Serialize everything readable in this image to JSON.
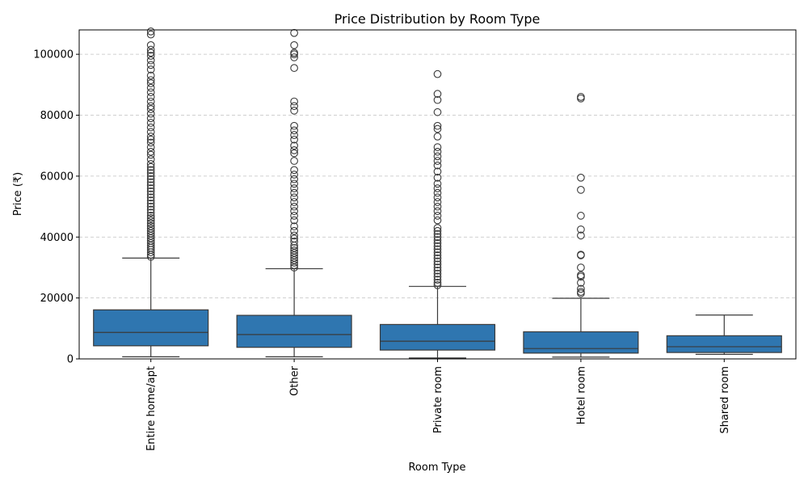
{
  "chart_data": {
    "type": "box",
    "title": "Price Distribution by Room Type",
    "xlabel": "Room Type",
    "ylabel": "Price (₹)",
    "ylim": [
      0,
      108000
    ],
    "yticks": [
      0,
      20000,
      40000,
      60000,
      80000,
      100000
    ],
    "grid": "y-dashed",
    "box_color": "#2f76b0",
    "categories": [
      "Entire home/apt",
      "Other",
      "Private room",
      "Hotel room",
      "Shared room"
    ],
    "boxes": [
      {
        "category": "Entire home/apt",
        "whisker_low": 700,
        "q1": 4300,
        "median": 8700,
        "q3": 16100,
        "whisker_high": 33100,
        "outliers": [
          33500,
          34200,
          35000,
          35800,
          36500,
          37200,
          38000,
          38800,
          39600,
          40400,
          41200,
          42000,
          42800,
          43600,
          44500,
          45400,
          46200,
          47000,
          48000,
          49000,
          50000,
          51000,
          52000,
          53000,
          54000,
          55000,
          56000,
          57000,
          58000,
          59000,
          60000,
          61000,
          62000,
          63000,
          64000,
          65500,
          67000,
          68000,
          69500,
          71000,
          72000,
          73000,
          74500,
          76000,
          77500,
          79000,
          80500,
          82000,
          83000,
          84500,
          86000,
          87500,
          89000,
          90500,
          91500,
          93000,
          95000,
          96500,
          98000,
          99500,
          100500,
          101500,
          103000,
          106500,
          107500
        ]
      },
      {
        "category": "Other",
        "whisker_low": 700,
        "q1": 3800,
        "median": 8000,
        "q3": 14300,
        "whisker_high": 29600,
        "outliers": [
          30000,
          30800,
          31600,
          32400,
          33200,
          34000,
          34800,
          35600,
          36400,
          37200,
          38500,
          39500,
          40500,
          42000,
          43500,
          45500,
          47000,
          48500,
          50000,
          51500,
          53000,
          54500,
          56000,
          57500,
          59000,
          60500,
          62000,
          65000,
          67500,
          68500,
          70000,
          72000,
          73500,
          75000,
          76500,
          81500,
          83000,
          84500,
          95500,
          99000,
          100000,
          100500,
          103000,
          107000
        ]
      },
      {
        "category": "Private room",
        "whisker_low": 300,
        "q1": 2900,
        "median": 5800,
        "q3": 11300,
        "whisker_high": 23800,
        "outliers": [
          24200,
          25000,
          26000,
          27000,
          28000,
          29000,
          30000,
          31000,
          32000,
          33000,
          34000,
          35000,
          36000,
          37000,
          38000,
          39000,
          40000,
          41000,
          42000,
          43000,
          45500,
          47000,
          48500,
          50000,
          51500,
          53000,
          54500,
          56000,
          57500,
          59500,
          61500,
          63500,
          65000,
          66500,
          68000,
          69500,
          73000,
          75500,
          76500,
          81000,
          85000,
          87000,
          93500
        ]
      },
      {
        "category": "Hotel room",
        "whisker_low": 600,
        "q1": 1900,
        "median": 3400,
        "q3": 8900,
        "whisker_high": 19900,
        "outliers": [
          21500,
          22000,
          23000,
          25000,
          27000,
          27500,
          30000,
          34000,
          34200,
          40500,
          42500,
          47000,
          55500,
          59500,
          85500,
          86000
        ]
      },
      {
        "category": "Shared room",
        "whisker_low": 1500,
        "q1": 2100,
        "median": 4000,
        "q3": 7600,
        "whisker_high": 14400,
        "outliers": []
      }
    ]
  }
}
